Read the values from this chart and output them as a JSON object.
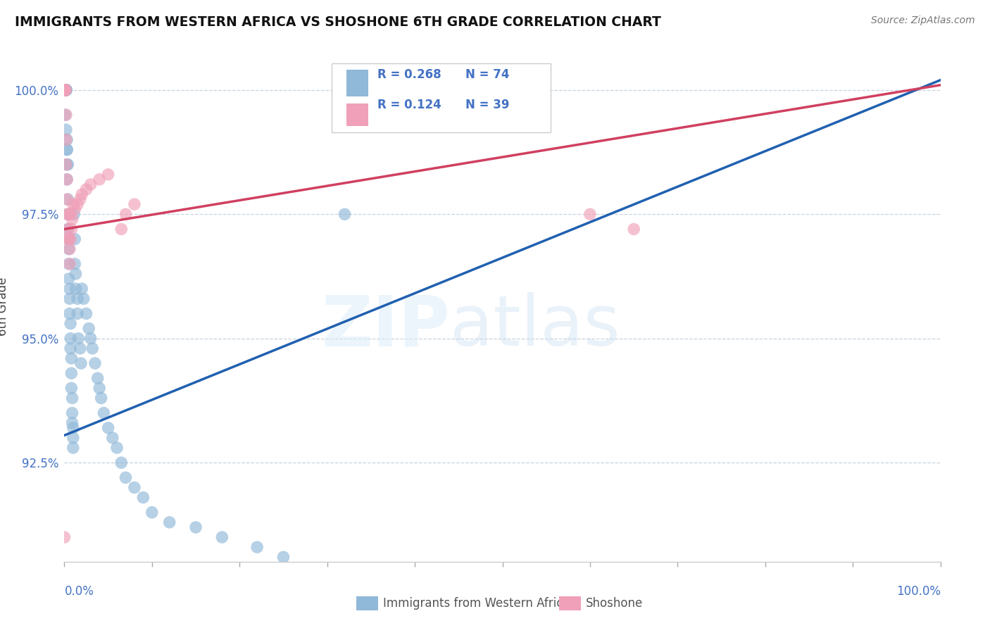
{
  "title": "IMMIGRANTS FROM WESTERN AFRICA VS SHOSHONE 6TH GRADE CORRELATION CHART",
  "source": "Source: ZipAtlas.com",
  "ylabel": "6th Grade",
  "xlim": [
    0.0,
    1.0
  ],
  "ylim": [
    0.905,
    1.008
  ],
  "ytick_values": [
    0.925,
    0.95,
    0.975,
    1.0
  ],
  "ytick_labels": [
    "92.5%",
    "95.0%",
    "97.5%",
    "100.0%"
  ],
  "xtick_values": [
    0.0,
    0.1,
    0.2,
    0.3,
    0.4,
    0.5,
    0.6,
    0.7,
    0.8,
    0.9,
    1.0
  ],
  "legend_blue_r": "R = 0.268",
  "legend_blue_n": "N = 74",
  "legend_pink_r": "R = 0.124",
  "legend_pink_n": "N = 39",
  "legend_blue_label": "Immigrants from Western Africa",
  "legend_pink_label": "Shoshone",
  "blue_color": "#90b8d8",
  "pink_color": "#f0a0b8",
  "blue_line_color": "#2060b0",
  "pink_line_color": "#d04060",
  "blue_line_start_x": 0.0,
  "blue_line_start_y": 0.9305,
  "blue_line_end_x": 1.0,
  "blue_line_end_y": 1.002,
  "pink_line_start_x": 0.0,
  "pink_line_start_y": 0.972,
  "pink_line_end_x": 1.0,
  "pink_line_end_y": 1.001,
  "blue_x": [
    0.001,
    0.001,
    0.001,
    0.001,
    0.002,
    0.002,
    0.002,
    0.002,
    0.002,
    0.003,
    0.003,
    0.003,
    0.003,
    0.004,
    0.004,
    0.004,
    0.005,
    0.005,
    0.005,
    0.005,
    0.006,
    0.006,
    0.006,
    0.007,
    0.007,
    0.007,
    0.008,
    0.008,
    0.008,
    0.009,
    0.009,
    0.009,
    0.01,
    0.01,
    0.01,
    0.011,
    0.012,
    0.012,
    0.013,
    0.013,
    0.015,
    0.015,
    0.016,
    0.018,
    0.019,
    0.02,
    0.022,
    0.025,
    0.028,
    0.03,
    0.032,
    0.035,
    0.038,
    0.04,
    0.042,
    0.045,
    0.05,
    0.055,
    0.06,
    0.065,
    0.07,
    0.08,
    0.09,
    0.1,
    0.12,
    0.15,
    0.18,
    0.22,
    0.25,
    0.32,
    0.001,
    0.002,
    0.003,
    0.004
  ],
  "blue_y": [
    1.0,
    1.0,
    1.0,
    1.0,
    1.0,
    1.0,
    1.0,
    1.0,
    1.0,
    0.99,
    0.988,
    0.985,
    0.982,
    0.978,
    0.975,
    0.972,
    0.97,
    0.968,
    0.965,
    0.962,
    0.96,
    0.958,
    0.955,
    0.953,
    0.95,
    0.948,
    0.946,
    0.943,
    0.94,
    0.938,
    0.935,
    0.933,
    0.932,
    0.93,
    0.928,
    0.975,
    0.97,
    0.965,
    0.963,
    0.96,
    0.958,
    0.955,
    0.95,
    0.948,
    0.945,
    0.96,
    0.958,
    0.955,
    0.952,
    0.95,
    0.948,
    0.945,
    0.942,
    0.94,
    0.938,
    0.935,
    0.932,
    0.93,
    0.928,
    0.925,
    0.922,
    0.92,
    0.918,
    0.915,
    0.913,
    0.912,
    0.91,
    0.908,
    0.906,
    0.975,
    0.995,
    0.992,
    0.988,
    0.985
  ],
  "pink_x": [
    0.0,
    0.0,
    0.0,
    0.001,
    0.001,
    0.001,
    0.001,
    0.001,
    0.001,
    0.002,
    0.002,
    0.002,
    0.003,
    0.003,
    0.003,
    0.004,
    0.004,
    0.005,
    0.005,
    0.006,
    0.006,
    0.007,
    0.007,
    0.008,
    0.009,
    0.01,
    0.012,
    0.015,
    0.018,
    0.02,
    0.025,
    0.03,
    0.04,
    0.05,
    0.065,
    0.07,
    0.08,
    0.6,
    0.65
  ],
  "pink_y": [
    0.91,
    1.0,
    1.0,
    1.0,
    1.0,
    1.0,
    1.0,
    1.0,
    1.0,
    0.995,
    0.99,
    0.985,
    0.982,
    0.978,
    0.975,
    0.972,
    0.97,
    0.975,
    0.97,
    0.968,
    0.965,
    0.975,
    0.97,
    0.972,
    0.974,
    0.977,
    0.976,
    0.977,
    0.978,
    0.979,
    0.98,
    0.981,
    0.982,
    0.983,
    0.972,
    0.975,
    0.977,
    0.975,
    0.972
  ]
}
